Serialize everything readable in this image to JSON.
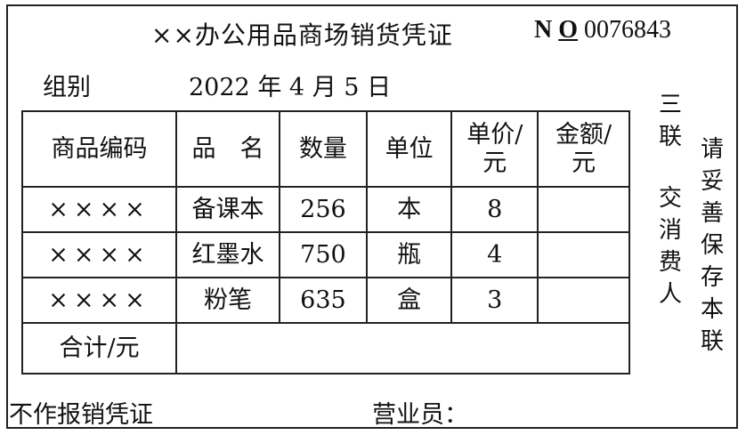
{
  "title": "××办公用品商场销货凭证",
  "serial": {
    "prefix_n": "N",
    "prefix_o": "O",
    "number": "0076843"
  },
  "group_label": "组别",
  "date": {
    "year": "2022",
    "year_unit": "年",
    "month": "4",
    "month_unit": "月",
    "day": "5",
    "day_unit": "日"
  },
  "table": {
    "headers": [
      "商品编码",
      "品　名",
      "数量",
      "单位",
      "单价/元",
      "金额/元"
    ],
    "rows": [
      {
        "code": "××××",
        "name": "备课本",
        "qty": "256",
        "unit": "本",
        "price": "8",
        "amount": ""
      },
      {
        "code": "××××",
        "name": "红墨水",
        "qty": "750",
        "unit": "瓶",
        "price": "4",
        "amount": ""
      },
      {
        "code": "××××",
        "name": "粉笔",
        "qty": "635",
        "unit": "盒",
        "price": "3",
        "amount": ""
      }
    ],
    "total_label": "合计/元",
    "total_value": ""
  },
  "side": {
    "copy_no": "三联",
    "copy_for": "交消费人",
    "keep_note": "请妥善保存本联"
  },
  "footer": {
    "not_reimbursable": "不作报销凭证",
    "salesperson": "营业员："
  }
}
